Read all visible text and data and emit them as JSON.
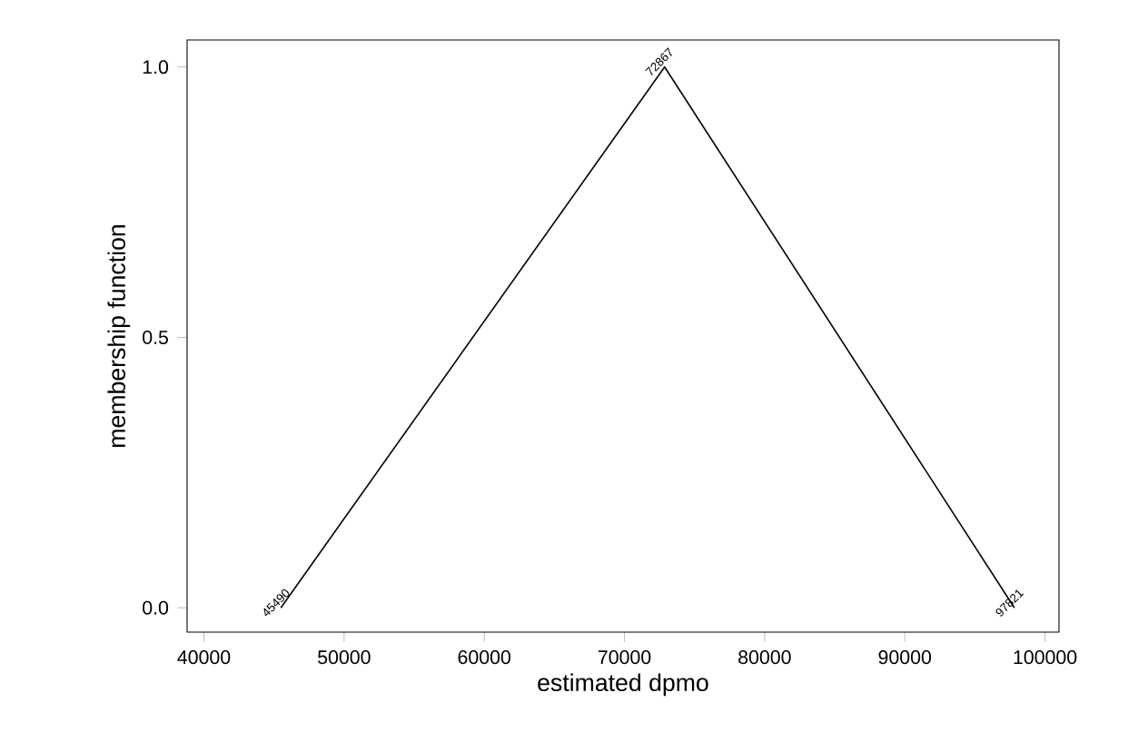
{
  "chart_data": {
    "type": "line",
    "xlabel": "estimated dpmo",
    "ylabel": "membership function",
    "x": [
      45490,
      72867,
      97821
    ],
    "values": [
      0,
      1,
      0
    ],
    "color": "#000000",
    "marker": "none",
    "line_style": "solid",
    "xlim": [
      38800,
      101000
    ],
    "ylim": [
      -0.045,
      1.05
    ],
    "xticks": [
      40000,
      50000,
      60000,
      70000,
      80000,
      90000,
      100000
    ],
    "yticks": [
      {
        "value": 0,
        "label": "0.0"
      },
      {
        "value": 0.5,
        "label": "0.5"
      },
      {
        "value": 1,
        "label": "1.0"
      }
    ],
    "annotations": [
      {
        "text": "45490",
        "x": 45490,
        "y": 0
      },
      {
        "text": "72867",
        "x": 72867,
        "y": 1
      },
      {
        "text": "97821",
        "x": 97821,
        "y": 0
      }
    ]
  }
}
